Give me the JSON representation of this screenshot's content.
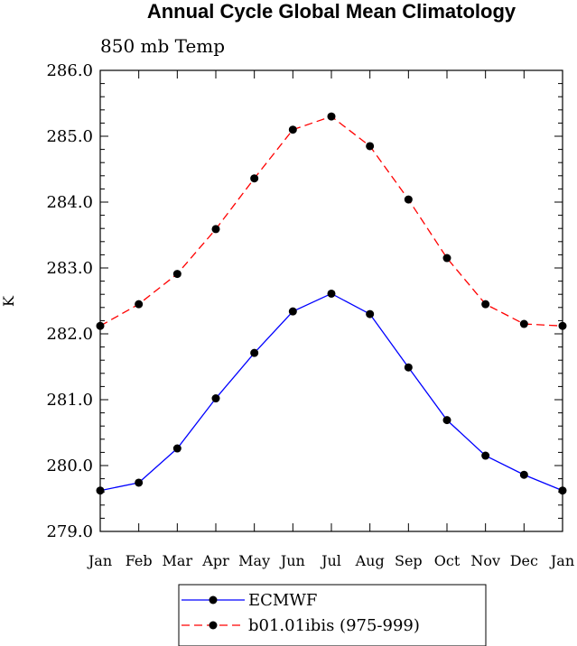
{
  "chart_data": {
    "type": "line",
    "title": "Annual Cycle Global Mean Climatology",
    "subtitle": "850 mb Temp",
    "ylabel": "K",
    "xlabel": "",
    "categories": [
      "Jan",
      "Feb",
      "Mar",
      "Apr",
      "May",
      "Jun",
      "Jul",
      "Aug",
      "Sep",
      "Oct",
      "Nov",
      "Dec",
      "Jan"
    ],
    "ylim": [
      279.0,
      286.0
    ],
    "yticks": [
      "279.0",
      "280.0",
      "281.0",
      "282.0",
      "283.0",
      "284.0",
      "285.0",
      "286.0"
    ],
    "series": [
      {
        "name": "ECMWF",
        "color": "#0000ff",
        "dash": "solid",
        "values": [
          279.62,
          279.74,
          280.26,
          281.02,
          281.71,
          282.34,
          282.61,
          282.3,
          281.49,
          280.69,
          280.15,
          279.86,
          279.62
        ]
      },
      {
        "name": "b01.01ibis (975-999)",
        "color": "#ff0000",
        "dash": "dashed",
        "values": [
          282.12,
          282.45,
          282.91,
          283.59,
          284.36,
          285.1,
          285.3,
          284.85,
          284.04,
          283.15,
          282.45,
          282.15,
          282.12
        ]
      }
    ],
    "grid": false,
    "legend": "bottom-center"
  }
}
